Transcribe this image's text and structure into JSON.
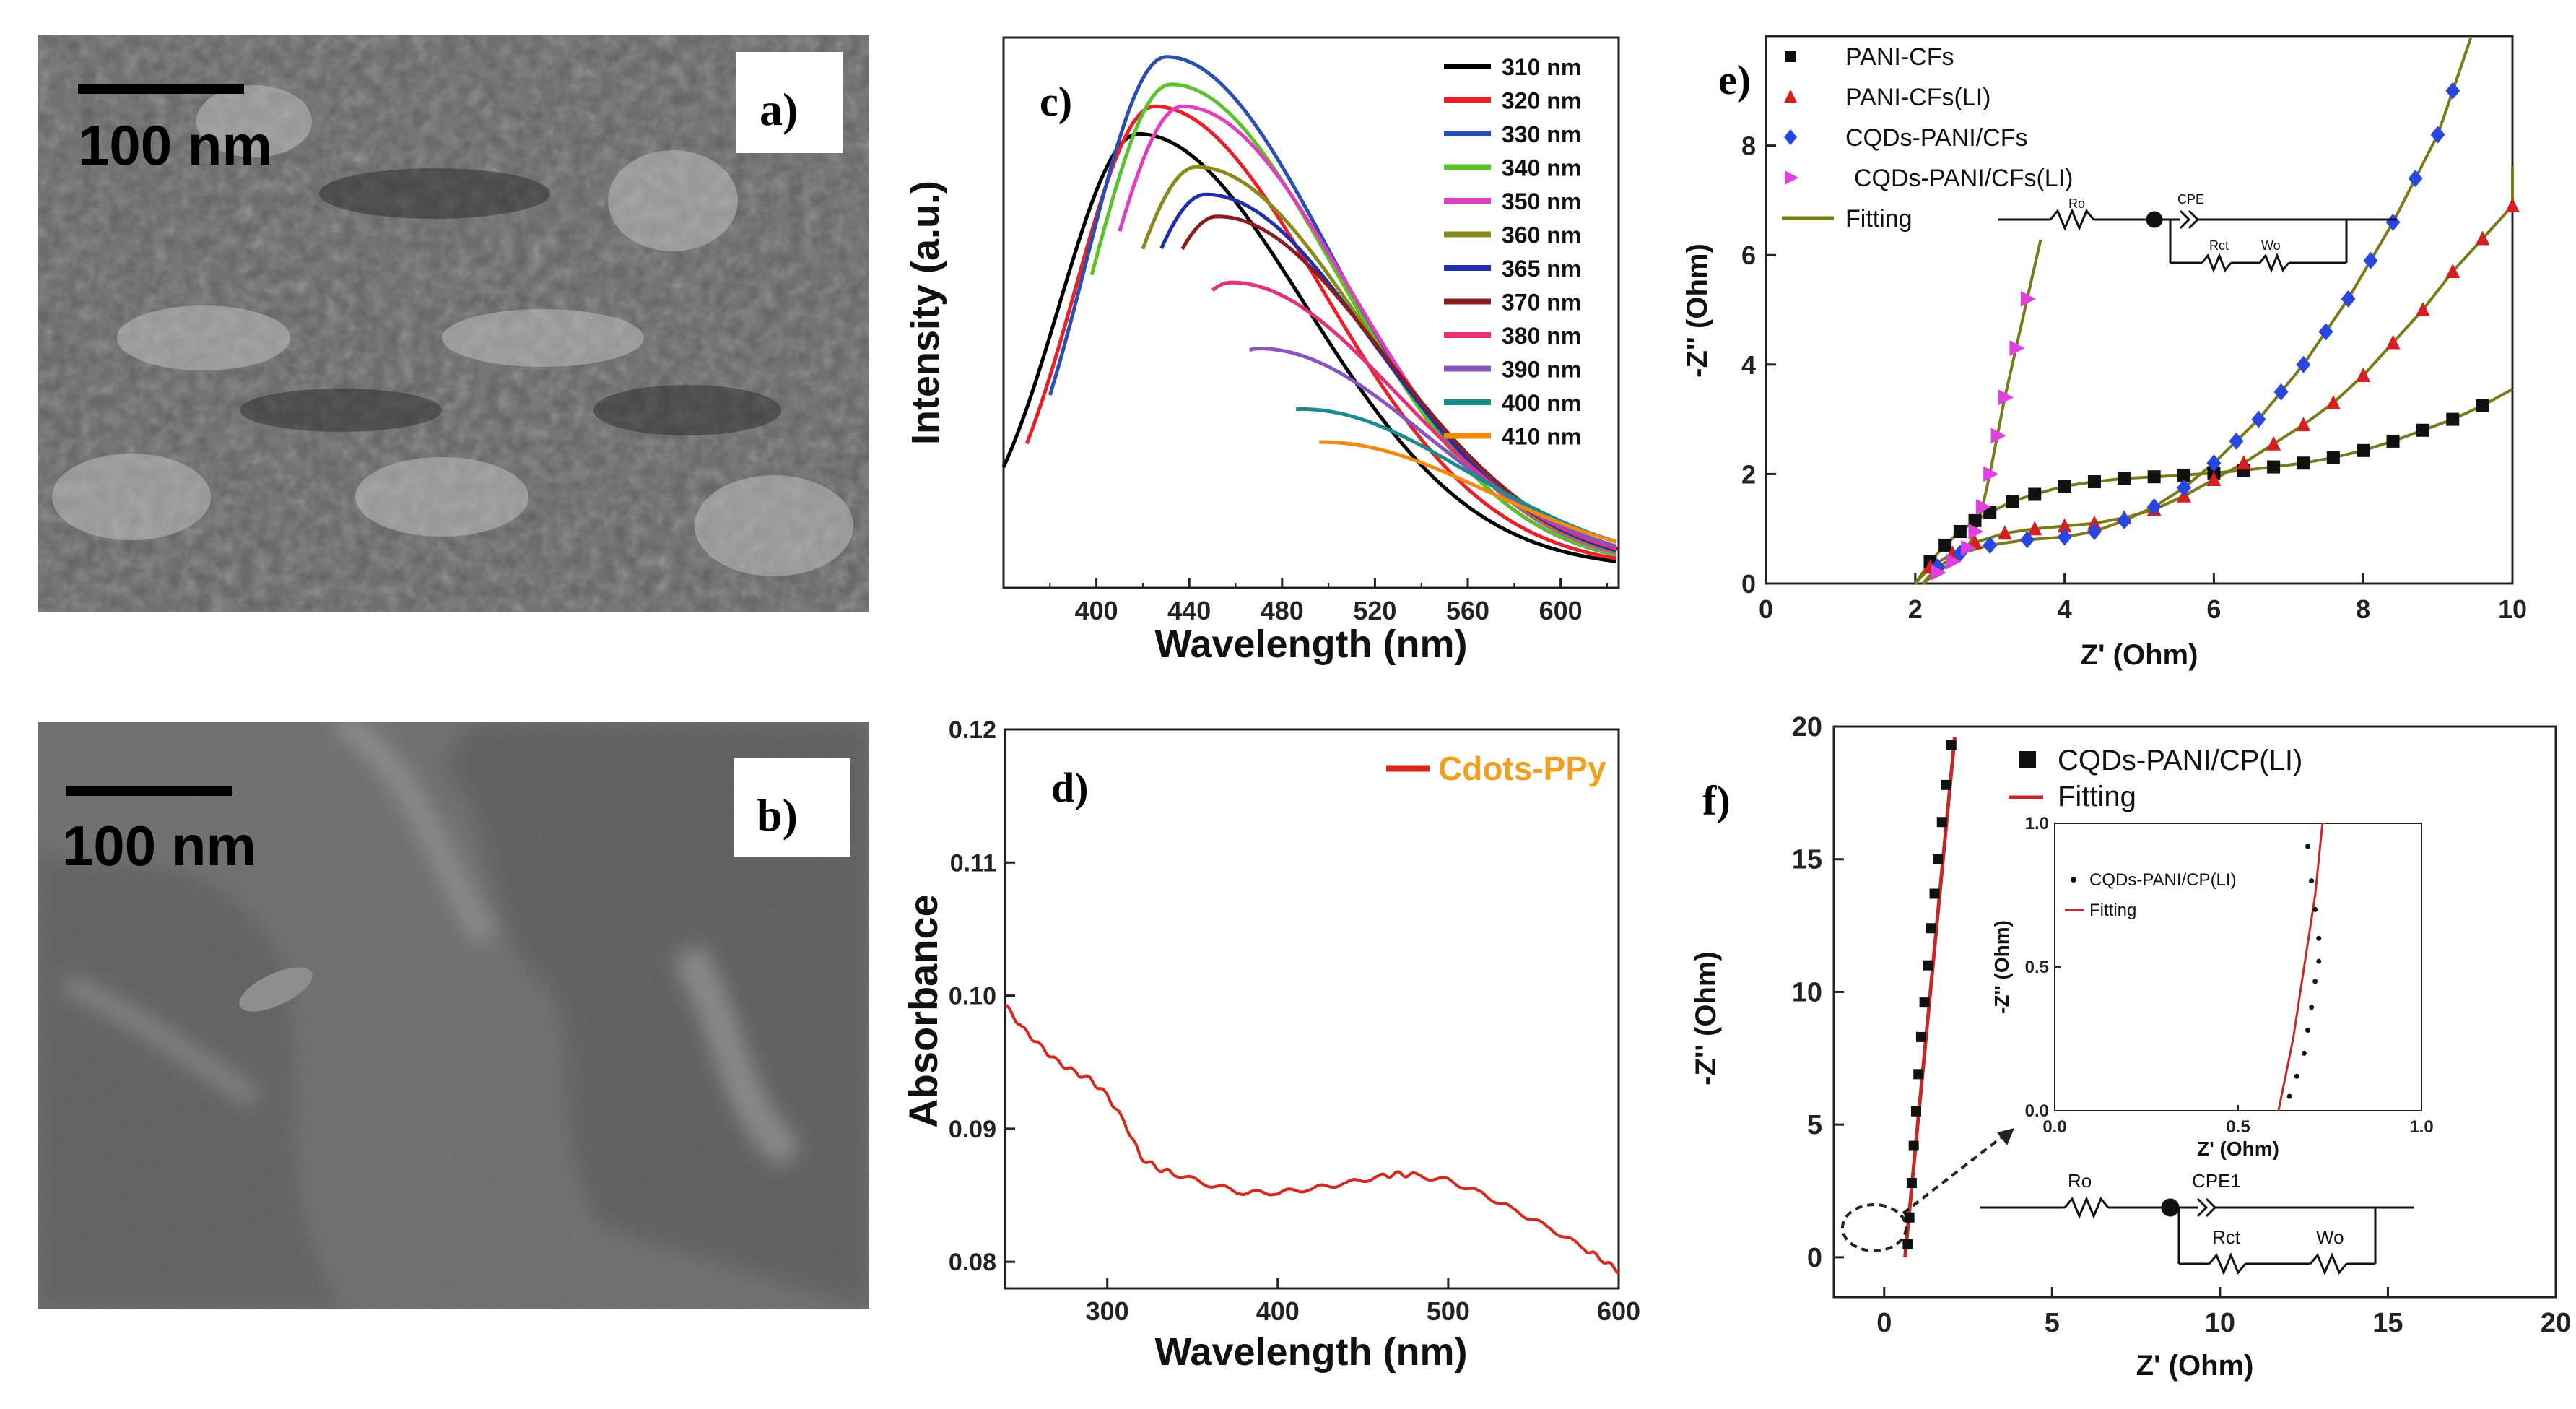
{
  "panels": {
    "a": {
      "label": "a)",
      "scale_bar": "100 nm"
    },
    "b": {
      "label": "b)",
      "scale_bar": "100 nm"
    },
    "c": {
      "label": "c)"
    },
    "d": {
      "label": "d)"
    },
    "e": {
      "label": "e)",
      "circuit": {
        "r0": "Ro",
        "cpe": "CPE",
        "rct": "Rct",
        "wo": "Wo"
      }
    },
    "f": {
      "label": "f)",
      "circuit": {
        "r0": "Ro",
        "cpe": "CPE1",
        "rct": "Rct",
        "wo": "Wo"
      }
    }
  },
  "chart_data": [
    {
      "id": "c",
      "type": "line",
      "title": "",
      "xlabel": "Wavelength (nm)",
      "ylabel": "Intensity (a.u.)",
      "xlim": [
        360,
        625
      ],
      "ylim": [
        0,
        1
      ],
      "xticks": [
        400,
        440,
        480,
        520,
        560,
        600
      ],
      "series": [
        {
          "name": "310 nm",
          "color": "#000000",
          "start": 360,
          "peak": 418,
          "amp": 0.79
        },
        {
          "name": "320 nm",
          "color": "#e8202a",
          "start": 370,
          "peak": 425,
          "amp": 0.84
        },
        {
          "name": "330 nm",
          "color": "#2a4fb0",
          "start": 380,
          "peak": 430,
          "amp": 0.93
        },
        {
          "name": "340 nm",
          "color": "#5cc22c",
          "start": 398,
          "peak": 432,
          "amp": 0.88
        },
        {
          "name": "350 nm",
          "color": "#e040c0",
          "start": 410,
          "peak": 437,
          "amp": 0.84
        },
        {
          "name": "360 nm",
          "color": "#8a8a18",
          "start": 420,
          "peak": 443,
          "amp": 0.73
        },
        {
          "name": "365 nm",
          "color": "#1f2fa8",
          "start": 428,
          "peak": 447,
          "amp": 0.68
        },
        {
          "name": "370 nm",
          "color": "#8a1e1e",
          "start": 437,
          "peak": 452,
          "amp": 0.64
        },
        {
          "name": "380 nm",
          "color": "#e8307a",
          "start": 450,
          "peak": 458,
          "amp": 0.52
        },
        {
          "name": "390 nm",
          "color": "#8855c0",
          "start": 466,
          "peak": 470,
          "amp": 0.4
        },
        {
          "name": "400 nm",
          "color": "#1e8a8a",
          "start": 486,
          "peak": 488,
          "amp": 0.29
        },
        {
          "name": "410 nm",
          "color": "#f08a10",
          "start": 496,
          "peak": 497,
          "amp": 0.23
        }
      ]
    },
    {
      "id": "d",
      "type": "line",
      "title": "",
      "xlabel": "Wavelength (nm)",
      "ylabel": "Absorbance",
      "xlim": [
        240,
        600
      ],
      "ylim": [
        0.078,
        0.12
      ],
      "xticks": [
        300,
        400,
        500,
        600
      ],
      "yticks": [
        0.08,
        0.09,
        0.1,
        0.11,
        0.12
      ],
      "series": [
        {
          "name": "Cdots-PPy",
          "color": "#d42a1e",
          "x": [
            240,
            250,
            260,
            270,
            280,
            290,
            300,
            310,
            320,
            330,
            340,
            360,
            380,
            400,
            420,
            440,
            460,
            470,
            480,
            500,
            520,
            540,
            560,
            580,
            590,
            600
          ],
          "y": [
            0.0993,
            0.0976,
            0.0963,
            0.0951,
            0.0943,
            0.0937,
            0.0925,
            0.0905,
            0.0878,
            0.087,
            0.0866,
            0.0858,
            0.0852,
            0.0852,
            0.0855,
            0.0859,
            0.0864,
            0.0866,
            0.0865,
            0.0861,
            0.0851,
            0.0838,
            0.0825,
            0.081,
            0.0802,
            0.0793
          ]
        }
      ]
    },
    {
      "id": "e",
      "type": "scatter",
      "title": "",
      "xlabel": "Z' (Ohm)",
      "ylabel": "-Z'' (Ohm)",
      "xlim": [
        0,
        10
      ],
      "ylim": [
        0,
        10
      ],
      "xticks": [
        0,
        2,
        4,
        6,
        8,
        10
      ],
      "yticks": [
        0,
        2,
        4,
        6,
        8
      ],
      "series": [
        {
          "name": "PANI-CFs",
          "color": "#111111",
          "marker": "square",
          "x": [
            2.2,
            2.4,
            2.6,
            2.8,
            3.0,
            3.3,
            3.6,
            4.0,
            4.4,
            4.8,
            5.2,
            5.6,
            6.0,
            6.4,
            6.8,
            7.2,
            7.6,
            8.0,
            8.4,
            8.8,
            9.2,
            9.6
          ],
          "y": [
            0.4,
            0.7,
            0.95,
            1.15,
            1.3,
            1.5,
            1.63,
            1.78,
            1.86,
            1.92,
            1.95,
            1.98,
            2.02,
            2.07,
            2.13,
            2.2,
            2.3,
            2.43,
            2.6,
            2.8,
            3.0,
            3.25
          ]
        },
        {
          "name": "PANI-CFs(LI)",
          "color": "#d42020",
          "marker": "triangle",
          "x": [
            2.2,
            2.5,
            2.8,
            3.2,
            3.6,
            4.0,
            4.4,
            4.8,
            5.2,
            5.6,
            6.0,
            6.4,
            6.8,
            7.2,
            7.6,
            8.0,
            8.4,
            8.8,
            9.2,
            9.6,
            10.0
          ],
          "y": [
            0.3,
            0.55,
            0.75,
            0.92,
            1.0,
            1.05,
            1.1,
            1.2,
            1.35,
            1.6,
            1.9,
            2.2,
            2.55,
            2.9,
            3.3,
            3.8,
            4.4,
            5.0,
            5.7,
            6.3,
            6.9
          ]
        },
        {
          "name": "CQDs-PANI/CFs",
          "color": "#2a46e0",
          "marker": "diamond",
          "x": [
            2.3,
            2.6,
            3.0,
            3.5,
            4.0,
            4.4,
            4.8,
            5.2,
            5.6,
            6.0,
            6.3,
            6.6,
            6.9,
            7.2,
            7.5,
            7.8,
            8.1,
            8.4,
            8.7,
            9.0,
            9.2
          ],
          "y": [
            0.3,
            0.55,
            0.7,
            0.8,
            0.85,
            0.95,
            1.15,
            1.4,
            1.75,
            2.2,
            2.6,
            3.0,
            3.5,
            4.0,
            4.6,
            5.2,
            5.9,
            6.6,
            7.4,
            8.2,
            9.0
          ]
        },
        {
          "name": "CQDs-PANI/CFs(LI)",
          "color": "#e040e0",
          "marker": "right-triangle",
          "x": [
            2.3,
            2.5,
            2.7,
            2.8,
            2.9,
            3.0,
            3.1,
            3.2,
            3.35,
            3.5
          ],
          "y": [
            0.2,
            0.4,
            0.65,
            0.95,
            1.4,
            2.0,
            2.7,
            3.4,
            4.3,
            5.2
          ]
        }
      ],
      "fit_color": "#7a7a1a",
      "fit_label": "Fitting"
    },
    {
      "id": "f",
      "type": "scatter",
      "title": "",
      "xlabel": "Z' (Ohm)",
      "ylabel": "-Z'' (Ohm)",
      "xlim": [
        -1.5,
        20
      ],
      "ylim": [
        -1.5,
        20
      ],
      "xticks": [
        0,
        5,
        10,
        15,
        20
      ],
      "yticks": [
        0,
        5,
        10,
        15,
        20
      ],
      "series": [
        {
          "name": "CQDs-PANI/CP(LI)",
          "color": "#111111",
          "marker": "square",
          "x": [
            0.7,
            0.75,
            0.82,
            0.88,
            0.95,
            1.02,
            1.1,
            1.2,
            1.3,
            1.4,
            1.5,
            1.6,
            1.72,
            1.85,
            2.0
          ],
          "y": [
            0.5,
            1.5,
            2.8,
            4.2,
            5.5,
            6.9,
            8.3,
            9.6,
            11.0,
            12.4,
            13.7,
            15.0,
            16.4,
            17.8,
            19.3
          ]
        }
      ],
      "fit": {
        "name": "Fitting",
        "color": "#c62828",
        "x": [
          0.62,
          2.1
        ],
        "y": [
          0,
          19.6
        ]
      },
      "inset": {
        "xlim": [
          0,
          1
        ],
        "ylim": [
          0,
          1
        ],
        "xticks": [
          0.0,
          0.5,
          1.0
        ],
        "yticks": [
          0.0,
          0.5,
          1.0
        ],
        "xlabel": "Z' (Ohm)",
        "ylabel": "-Z'' (Ohm)",
        "series_name": "CQDs-PANI/CP(LI)",
        "fit_name": "Fitting",
        "x": [
          0.64,
          0.66,
          0.68,
          0.69,
          0.7,
          0.71,
          0.72,
          0.72,
          0.71,
          0.7,
          0.69
        ],
        "y": [
          0.05,
          0.12,
          0.2,
          0.28,
          0.36,
          0.45,
          0.52,
          0.6,
          0.7,
          0.8,
          0.92
        ],
        "fit_x": [
          0.61,
          0.65,
          0.68,
          0.71,
          0.73
        ],
        "fit_y": [
          0.0,
          0.25,
          0.5,
          0.75,
          1.0
        ]
      }
    }
  ]
}
